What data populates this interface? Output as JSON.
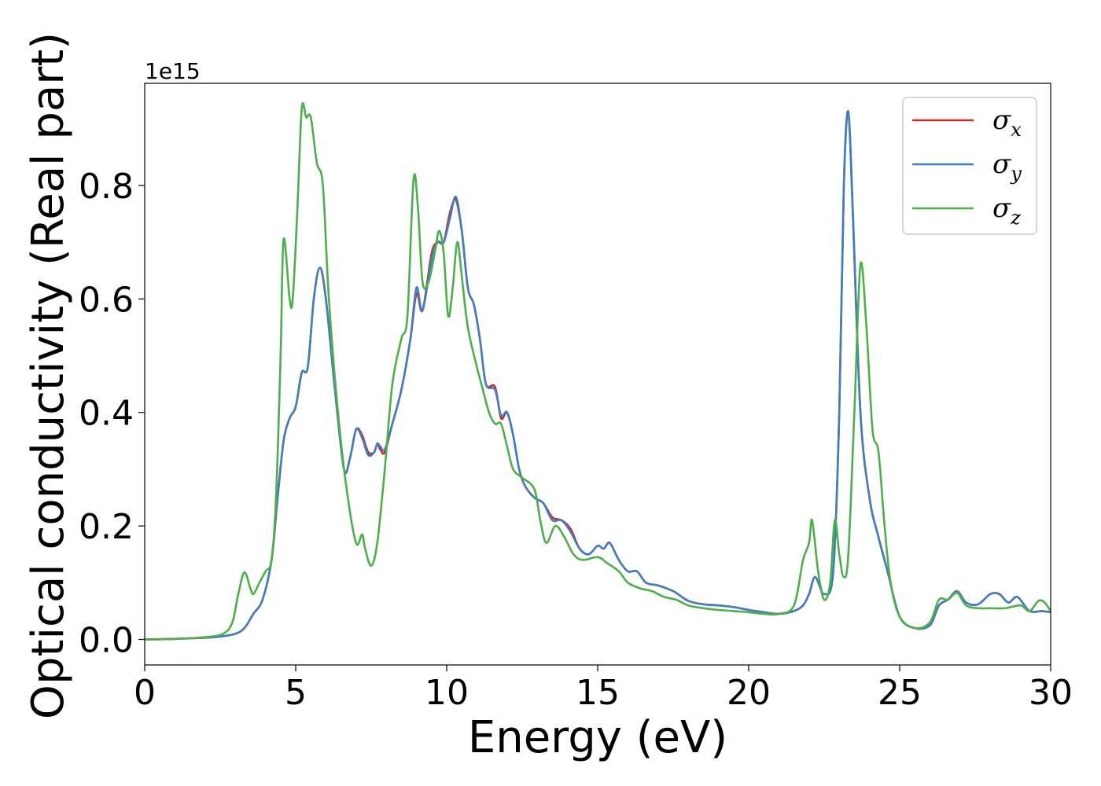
{
  "chart_data": {
    "type": "line",
    "title": "",
    "xlabel": "Energy (eV)",
    "ylabel": "Optical conductivity (Real part)",
    "y_offset_text": "1e15",
    "xlim": [
      0,
      30
    ],
    "ylim": [
      -0.045,
      0.98
    ],
    "x_ticks": [
      0,
      5,
      10,
      15,
      20,
      25,
      30
    ],
    "x_tick_labels": [
      "0",
      "5",
      "10",
      "15",
      "20",
      "25",
      "30"
    ],
    "y_ticks": [
      0.0,
      0.2,
      0.4,
      0.6,
      0.8
    ],
    "y_tick_labels": [
      "0.0",
      "0.2",
      "0.4",
      "0.6",
      "0.8"
    ],
    "grid": false,
    "legend_position": "top-right",
    "series": [
      {
        "name": "σx",
        "legend_symbol": "σ",
        "legend_subscript": "x",
        "color": "#d62728",
        "points": [
          [
            0,
            0
          ],
          [
            1,
            0.001
          ],
          [
            2,
            0.003
          ],
          [
            2.5,
            0.005
          ],
          [
            3,
            0.01
          ],
          [
            3.3,
            0.02
          ],
          [
            3.6,
            0.045
          ],
          [
            3.9,
            0.07
          ],
          [
            4.2,
            0.14
          ],
          [
            4.4,
            0.25
          ],
          [
            4.6,
            0.35
          ],
          [
            4.8,
            0.39
          ],
          [
            5,
            0.41
          ],
          [
            5.2,
            0.47
          ],
          [
            5.4,
            0.48
          ],
          [
            5.6,
            0.6
          ],
          [
            5.8,
            0.655
          ],
          [
            6,
            0.6
          ],
          [
            6.3,
            0.44
          ],
          [
            6.6,
            0.3
          ],
          [
            6.8,
            0.32
          ],
          [
            7,
            0.37
          ],
          [
            7.2,
            0.36
          ],
          [
            7.4,
            0.33
          ],
          [
            7.6,
            0.33
          ],
          [
            7.7,
            0.345
          ],
          [
            7.8,
            0.335
          ],
          [
            7.95,
            0.33
          ],
          [
            8.2,
            0.38
          ],
          [
            8.5,
            0.44
          ],
          [
            8.8,
            0.53
          ],
          [
            9,
            0.61
          ],
          [
            9.2,
            0.58
          ],
          [
            9.5,
            0.68
          ],
          [
            9.7,
            0.7
          ],
          [
            9.9,
            0.7
          ],
          [
            10.1,
            0.75
          ],
          [
            10.3,
            0.775
          ],
          [
            10.5,
            0.72
          ],
          [
            10.7,
            0.62
          ],
          [
            10.9,
            0.59
          ],
          [
            11.1,
            0.53
          ],
          [
            11.3,
            0.45
          ],
          [
            11.6,
            0.445
          ],
          [
            11.8,
            0.39
          ],
          [
            12,
            0.4
          ],
          [
            12.2,
            0.36
          ],
          [
            12.4,
            0.3
          ],
          [
            12.6,
            0.27
          ],
          [
            12.9,
            0.25
          ],
          [
            13.2,
            0.24
          ],
          [
            13.5,
            0.215
          ],
          [
            13.8,
            0.21
          ],
          [
            14.1,
            0.195
          ],
          [
            14.4,
            0.16
          ],
          [
            14.7,
            0.15
          ],
          [
            15,
            0.165
          ],
          [
            15.2,
            0.16
          ],
          [
            15.4,
            0.17
          ],
          [
            15.7,
            0.14
          ],
          [
            16,
            0.12
          ],
          [
            16.3,
            0.12
          ],
          [
            16.6,
            0.1
          ],
          [
            17,
            0.095
          ],
          [
            17.5,
            0.085
          ],
          [
            18,
            0.068
          ],
          [
            18.5,
            0.062
          ],
          [
            19,
            0.06
          ],
          [
            19.5,
            0.057
          ],
          [
            20,
            0.052
          ],
          [
            20.5,
            0.048
          ],
          [
            21,
            0.045
          ],
          [
            21.5,
            0.05
          ],
          [
            21.8,
            0.06
          ],
          [
            22,
            0.08
          ],
          [
            22.2,
            0.11
          ],
          [
            22.5,
            0.08
          ],
          [
            22.8,
            0.12
          ],
          [
            23,
            0.4
          ],
          [
            23.15,
            0.8
          ],
          [
            23.3,
            0.93
          ],
          [
            23.45,
            0.75
          ],
          [
            23.7,
            0.4
          ],
          [
            24,
            0.25
          ],
          [
            24.3,
            0.18
          ],
          [
            24.6,
            0.12
          ],
          [
            25,
            0.04
          ],
          [
            25.5,
            0.02
          ],
          [
            26,
            0.025
          ],
          [
            26.3,
            0.06
          ],
          [
            26.6,
            0.07
          ],
          [
            26.9,
            0.085
          ],
          [
            27.2,
            0.065
          ],
          [
            27.6,
            0.062
          ],
          [
            28,
            0.08
          ],
          [
            28.3,
            0.08
          ],
          [
            28.6,
            0.065
          ],
          [
            28.9,
            0.075
          ],
          [
            29.3,
            0.05
          ],
          [
            29.7,
            0.05
          ],
          [
            30,
            0.048
          ]
        ]
      },
      {
        "name": "σy",
        "legend_symbol": "σ",
        "legend_subscript": "y",
        "color": "#3f7fbf",
        "points": [
          [
            0,
            0
          ],
          [
            1,
            0.001
          ],
          [
            2,
            0.003
          ],
          [
            2.5,
            0.005
          ],
          [
            3,
            0.01
          ],
          [
            3.3,
            0.02
          ],
          [
            3.6,
            0.045
          ],
          [
            3.9,
            0.07
          ],
          [
            4.2,
            0.14
          ],
          [
            4.4,
            0.25
          ],
          [
            4.6,
            0.35
          ],
          [
            4.8,
            0.39
          ],
          [
            5,
            0.41
          ],
          [
            5.2,
            0.47
          ],
          [
            5.4,
            0.48
          ],
          [
            5.6,
            0.6
          ],
          [
            5.8,
            0.655
          ],
          [
            6,
            0.6
          ],
          [
            6.3,
            0.44
          ],
          [
            6.6,
            0.3
          ],
          [
            6.8,
            0.32
          ],
          [
            7,
            0.37
          ],
          [
            7.2,
            0.355
          ],
          [
            7.4,
            0.325
          ],
          [
            7.6,
            0.33
          ],
          [
            7.7,
            0.345
          ],
          [
            7.8,
            0.34
          ],
          [
            7.95,
            0.335
          ],
          [
            8.2,
            0.38
          ],
          [
            8.5,
            0.44
          ],
          [
            8.8,
            0.53
          ],
          [
            9,
            0.62
          ],
          [
            9.2,
            0.58
          ],
          [
            9.5,
            0.67
          ],
          [
            9.7,
            0.7
          ],
          [
            9.9,
            0.7
          ],
          [
            10.1,
            0.74
          ],
          [
            10.3,
            0.78
          ],
          [
            10.5,
            0.72
          ],
          [
            10.7,
            0.62
          ],
          [
            10.9,
            0.59
          ],
          [
            11.1,
            0.53
          ],
          [
            11.3,
            0.45
          ],
          [
            11.6,
            0.44
          ],
          [
            11.8,
            0.395
          ],
          [
            12,
            0.4
          ],
          [
            12.2,
            0.36
          ],
          [
            12.4,
            0.3
          ],
          [
            12.6,
            0.27
          ],
          [
            12.9,
            0.25
          ],
          [
            13.2,
            0.24
          ],
          [
            13.5,
            0.21
          ],
          [
            13.8,
            0.21
          ],
          [
            14.1,
            0.19
          ],
          [
            14.4,
            0.16
          ],
          [
            14.7,
            0.15
          ],
          [
            15,
            0.165
          ],
          [
            15.2,
            0.16
          ],
          [
            15.4,
            0.17
          ],
          [
            15.7,
            0.14
          ],
          [
            16,
            0.12
          ],
          [
            16.3,
            0.12
          ],
          [
            16.6,
            0.1
          ],
          [
            17,
            0.095
          ],
          [
            17.5,
            0.085
          ],
          [
            18,
            0.068
          ],
          [
            18.5,
            0.062
          ],
          [
            19,
            0.06
          ],
          [
            19.5,
            0.057
          ],
          [
            20,
            0.052
          ],
          [
            20.5,
            0.048
          ],
          [
            21,
            0.045
          ],
          [
            21.5,
            0.05
          ],
          [
            21.8,
            0.06
          ],
          [
            22,
            0.08
          ],
          [
            22.2,
            0.11
          ],
          [
            22.5,
            0.08
          ],
          [
            22.8,
            0.12
          ],
          [
            23,
            0.4
          ],
          [
            23.15,
            0.8
          ],
          [
            23.3,
            0.93
          ],
          [
            23.45,
            0.75
          ],
          [
            23.7,
            0.4
          ],
          [
            24,
            0.25
          ],
          [
            24.3,
            0.18
          ],
          [
            24.6,
            0.12
          ],
          [
            25,
            0.04
          ],
          [
            25.5,
            0.02
          ],
          [
            26,
            0.025
          ],
          [
            26.3,
            0.06
          ],
          [
            26.6,
            0.07
          ],
          [
            26.9,
            0.085
          ],
          [
            27.2,
            0.065
          ],
          [
            27.6,
            0.062
          ],
          [
            28,
            0.08
          ],
          [
            28.3,
            0.08
          ],
          [
            28.6,
            0.065
          ],
          [
            28.9,
            0.075
          ],
          [
            29.3,
            0.05
          ],
          [
            29.7,
            0.05
          ],
          [
            30,
            0.048
          ]
        ]
      },
      {
        "name": "σz",
        "legend_symbol": "σ",
        "legend_subscript": "z",
        "color": "#4daf4a",
        "points": [
          [
            0,
            0
          ],
          [
            1,
            0.001
          ],
          [
            2,
            0.004
          ],
          [
            2.6,
            0.01
          ],
          [
            2.9,
            0.03
          ],
          [
            3.1,
            0.08
          ],
          [
            3.3,
            0.118
          ],
          [
            3.5,
            0.09
          ],
          [
            3.6,
            0.08
          ],
          [
            3.8,
            0.1
          ],
          [
            4,
            0.12
          ],
          [
            4.2,
            0.14
          ],
          [
            4.35,
            0.25
          ],
          [
            4.5,
            0.5
          ],
          [
            4.6,
            0.705
          ],
          [
            4.8,
            0.6
          ],
          [
            4.9,
            0.6
          ],
          [
            5.05,
            0.75
          ],
          [
            5.2,
            0.935
          ],
          [
            5.35,
            0.92
          ],
          [
            5.5,
            0.92
          ],
          [
            5.7,
            0.84
          ],
          [
            5.9,
            0.8
          ],
          [
            6.1,
            0.6
          ],
          [
            6.4,
            0.4
          ],
          [
            6.7,
            0.26
          ],
          [
            7,
            0.17
          ],
          [
            7.2,
            0.185
          ],
          [
            7.3,
            0.16
          ],
          [
            7.5,
            0.13
          ],
          [
            7.7,
            0.17
          ],
          [
            7.95,
            0.3
          ],
          [
            8.2,
            0.45
          ],
          [
            8.5,
            0.53
          ],
          [
            8.7,
            0.57
          ],
          [
            8.9,
            0.81
          ],
          [
            9.05,
            0.76
          ],
          [
            9.2,
            0.63
          ],
          [
            9.4,
            0.63
          ],
          [
            9.6,
            0.68
          ],
          [
            9.75,
            0.72
          ],
          [
            9.9,
            0.68
          ],
          [
            10.05,
            0.57
          ],
          [
            10.2,
            0.62
          ],
          [
            10.35,
            0.7
          ],
          [
            10.5,
            0.64
          ],
          [
            10.7,
            0.55
          ],
          [
            11,
            0.48
          ],
          [
            11.2,
            0.44
          ],
          [
            11.4,
            0.4
          ],
          [
            11.6,
            0.38
          ],
          [
            11.8,
            0.38
          ],
          [
            12,
            0.34
          ],
          [
            12.2,
            0.3
          ],
          [
            12.5,
            0.285
          ],
          [
            12.9,
            0.265
          ],
          [
            13.1,
            0.21
          ],
          [
            13.3,
            0.17
          ],
          [
            13.6,
            0.2
          ],
          [
            13.9,
            0.18
          ],
          [
            14.2,
            0.15
          ],
          [
            14.5,
            0.14
          ],
          [
            15,
            0.145
          ],
          [
            15.3,
            0.135
          ],
          [
            15.7,
            0.12
          ],
          [
            16,
            0.1
          ],
          [
            16.4,
            0.09
          ],
          [
            16.8,
            0.085
          ],
          [
            17.2,
            0.075
          ],
          [
            17.6,
            0.07
          ],
          [
            18,
            0.06
          ],
          [
            18.5,
            0.055
          ],
          [
            19,
            0.052
          ],
          [
            19.5,
            0.05
          ],
          [
            20,
            0.048
          ],
          [
            20.5,
            0.045
          ],
          [
            21,
            0.045
          ],
          [
            21.5,
            0.06
          ],
          [
            21.8,
            0.14
          ],
          [
            22,
            0.17
          ],
          [
            22.1,
            0.21
          ],
          [
            22.3,
            0.12
          ],
          [
            22.5,
            0.07
          ],
          [
            22.7,
            0.1
          ],
          [
            22.85,
            0.21
          ],
          [
            23,
            0.15
          ],
          [
            23.15,
            0.11
          ],
          [
            23.3,
            0.15
          ],
          [
            23.5,
            0.4
          ],
          [
            23.7,
            0.66
          ],
          [
            23.9,
            0.55
          ],
          [
            24.1,
            0.37
          ],
          [
            24.3,
            0.33
          ],
          [
            24.5,
            0.2
          ],
          [
            24.7,
            0.1
          ],
          [
            25,
            0.04
          ],
          [
            25.5,
            0.02
          ],
          [
            26,
            0.03
          ],
          [
            26.3,
            0.07
          ],
          [
            26.6,
            0.07
          ],
          [
            26.9,
            0.082
          ],
          [
            27.2,
            0.06
          ],
          [
            27.6,
            0.055
          ],
          [
            28,
            0.055
          ],
          [
            28.5,
            0.055
          ],
          [
            29,
            0.06
          ],
          [
            29.3,
            0.05
          ],
          [
            29.6,
            0.068
          ],
          [
            29.8,
            0.065
          ],
          [
            30,
            0.05
          ]
        ]
      }
    ]
  }
}
